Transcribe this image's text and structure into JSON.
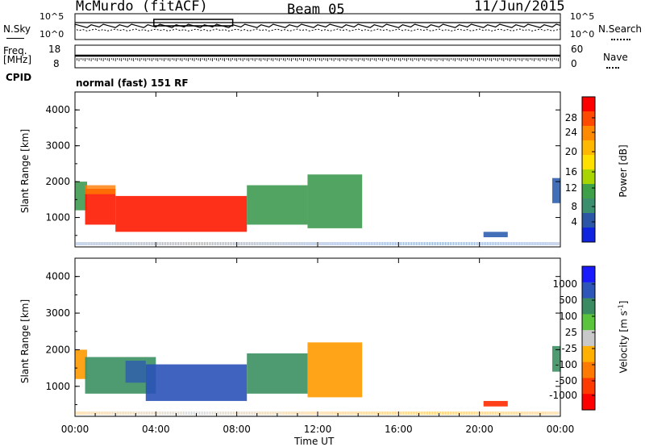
{
  "header": {
    "station": "McMurdo (fitACF)",
    "beam": "Beam 05",
    "date": "11/Jun/2015"
  },
  "top_panels": {
    "nsky_label": "N.Sky",
    "nsearch_label": "N.Search",
    "log_ticks": [
      "10^5",
      "10^0"
    ],
    "freq_label_1": "Freq.",
    "freq_label_2": "[MHz]",
    "freq_ticks": [
      "18",
      "8"
    ],
    "nave_label": "Nave",
    "nave_ticks": [
      "60",
      "0"
    ],
    "cpid_label": "CPID",
    "cpid_value": "normal (fast) 151 RF"
  },
  "colorbars": {
    "power": {
      "label": "Power [dB]",
      "ticks": [
        "28",
        "24",
        "20",
        "16",
        "12",
        "8",
        "4"
      ],
      "colors": [
        "#ff0000",
        "#ff4a00",
        "#ff8a00",
        "#ffb800",
        "#ffe000",
        "#a8d400",
        "#3fa04a",
        "#3b8f6f",
        "#2b55a5",
        "#1024e0"
      ]
    },
    "velocity": {
      "label": "Velocity [m s",
      "label_exp": "-1",
      "label_end": "]",
      "ticks": [
        "1000",
        "500",
        "100",
        "25",
        "-25",
        "-100",
        "-500",
        "-1000"
      ],
      "colors": [
        "#1a1aff",
        "#2d56b8",
        "#3a8a62",
        "#59c43c",
        "#c8c8c8",
        "#ffb000",
        "#ff7a00",
        "#ff3a00",
        "#ff0000"
      ]
    }
  },
  "chart_data": [
    {
      "type": "heatmap",
      "panel": "power",
      "ylabel": "Slant Range [km]",
      "yticks": [
        "4000",
        "3000",
        "2000",
        "1000"
      ],
      "ylim": [
        180,
        4500
      ],
      "xlim": [
        0,
        24
      ],
      "regions": [
        {
          "t0": 0.0,
          "t1": 0.6,
          "r0": 1200,
          "r1": 2000,
          "level": "medium"
        },
        {
          "t0": 0.5,
          "t1": 2.0,
          "r0": 800,
          "r1": 1800,
          "level": "high"
        },
        {
          "t0": 2.0,
          "t1": 8.5,
          "r0": 600,
          "r1": 1600,
          "level": "high"
        },
        {
          "t0": 8.5,
          "t1": 11.5,
          "r0": 800,
          "r1": 1900,
          "level": "medium"
        },
        {
          "t0": 11.5,
          "t1": 14.2,
          "r0": 700,
          "r1": 2200,
          "level": "medium"
        },
        {
          "t0": 20.2,
          "t1": 21.4,
          "r0": 450,
          "r1": 600,
          "level": "low"
        },
        {
          "t0": 23.6,
          "t1": 24.0,
          "r0": 1400,
          "r1": 2100,
          "level": "low"
        }
      ]
    },
    {
      "type": "heatmap",
      "panel": "velocity",
      "ylabel": "Slant Range [km]",
      "yticks": [
        "4000",
        "3000",
        "2000",
        "1000"
      ],
      "ylim": [
        180,
        4500
      ],
      "xlim": [
        0,
        24
      ],
      "xticks": [
        "00:00",
        "04:00",
        "08:00",
        "12:00",
        "16:00",
        "20:00",
        "00:00"
      ],
      "xlabel": "Time UT",
      "regions": [
        {
          "t0": 0.0,
          "t1": 0.6,
          "r0": 1200,
          "r1": 2000,
          "level": "orange"
        },
        {
          "t0": 0.5,
          "t1": 4.0,
          "r0": 800,
          "r1": 1800,
          "level": "green"
        },
        {
          "t0": 3.5,
          "t1": 8.5,
          "r0": 600,
          "r1": 1600,
          "level": "blue"
        },
        {
          "t0": 8.5,
          "t1": 11.5,
          "r0": 800,
          "r1": 1900,
          "level": "green"
        },
        {
          "t0": 11.5,
          "t1": 14.2,
          "r0": 700,
          "r1": 2200,
          "level": "orange"
        },
        {
          "t0": 20.2,
          "t1": 21.4,
          "r0": 450,
          "r1": 600,
          "level": "red"
        },
        {
          "t0": 23.6,
          "t1": 24.0,
          "r0": 1400,
          "r1": 2100,
          "level": "green"
        }
      ]
    }
  ]
}
